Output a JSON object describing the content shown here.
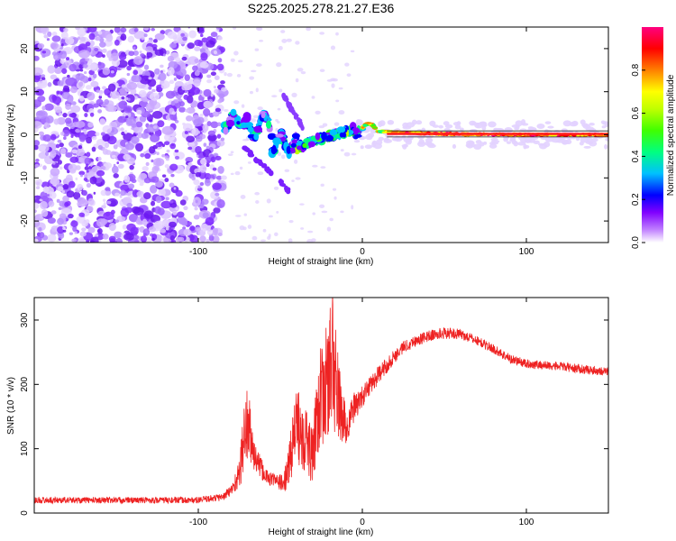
{
  "page_title": "S225.2025.278.21.27.E36",
  "chart_data": [
    {
      "type": "heatmap",
      "title": "S225.2025.278.21.27.E36",
      "xlabel": "Height of straight line (km)",
      "ylabel": "Frequency (Hz)",
      "xlim": [
        -200,
        150
      ],
      "ylim": [
        -25,
        25
      ],
      "x_ticks": [
        -100,
        0,
        100
      ],
      "y_ticks": [
        -20,
        -10,
        0,
        10,
        20
      ],
      "colorbar": {
        "label": "Normalized spectral amplitude",
        "range": [
          0,
          1
        ],
        "ticks": [
          "0.0",
          "0.2",
          "0.4",
          "0.6",
          "0.8"
        ],
        "colors": [
          "#ffffff",
          "#c080ff",
          "#8000ff",
          "#0000ff",
          "#00c0ff",
          "#00ff80",
          "#40ff00",
          "#c0ff00",
          "#ffff00",
          "#ff8000",
          "#ff0000",
          "#ff0080"
        ]
      },
      "features": {
        "noise_region_x": [
          -200,
          -85
        ],
        "carrier_freq_hz": 0,
        "carrier_start_x": -85
      }
    },
    {
      "type": "line",
      "xlabel": "Height of straight line (km)",
      "ylabel": "SNR (10 * v/v)",
      "xlim": [
        -200,
        150
      ],
      "ylim": [
        0,
        335
      ],
      "x_ticks": [
        -100,
        0,
        100
      ],
      "y_ticks": [
        0,
        100,
        200,
        300
      ],
      "series": [
        {
          "name": "SNR",
          "color": "#ee2222",
          "envelope_x": [
            -200,
            -150,
            -100,
            -85,
            -80,
            -75,
            -72,
            -70,
            -66,
            -62,
            -58,
            -52,
            -48,
            -45,
            -42,
            -38,
            -35,
            -32,
            -30,
            -28,
            -25,
            -22,
            -20,
            -18,
            -16,
            -14,
            -12,
            -10,
            -5,
            0,
            5,
            10,
            15,
            20,
            25,
            30,
            40,
            50,
            60,
            70,
            80,
            90,
            100,
            110,
            120,
            130,
            140,
            150
          ],
          "envelope_y": [
            20,
            20,
            20,
            25,
            35,
            60,
            120,
            140,
            90,
            70,
            55,
            50,
            45,
            70,
            120,
            140,
            120,
            100,
            80,
            160,
            180,
            200,
            220,
            240,
            200,
            170,
            150,
            130,
            165,
            180,
            200,
            215,
            230,
            245,
            258,
            265,
            275,
            280,
            278,
            268,
            255,
            240,
            232,
            230,
            228,
            225,
            222,
            220
          ],
          "spread": [
            10,
            10,
            10,
            12,
            18,
            45,
            120,
            130,
            50,
            35,
            25,
            20,
            30,
            60,
            110,
            130,
            120,
            100,
            80,
            150,
            160,
            180,
            200,
            250,
            160,
            120,
            100,
            60,
            45,
            35,
            30,
            28,
            25,
            22,
            20,
            18,
            18,
            18,
            16,
            15,
            15,
            15,
            14,
            14,
            14,
            14,
            14,
            14
          ]
        }
      ]
    }
  ]
}
